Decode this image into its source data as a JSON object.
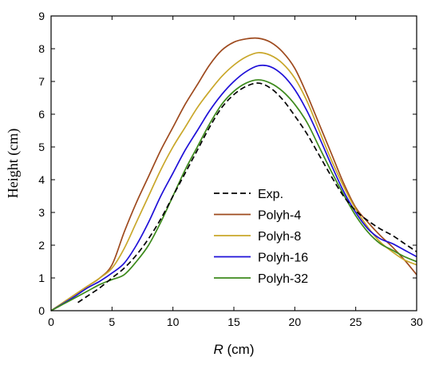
{
  "chart_data": {
    "type": "line",
    "xlabel_italic": "R",
    "xlabel_unit": " (cm)",
    "ylabel": "Height (cm)",
    "xlim": [
      0,
      30
    ],
    "ylim": [
      0,
      9
    ],
    "xticks": [
      0,
      5,
      10,
      15,
      20,
      25,
      30
    ],
    "yticks": [
      0,
      1,
      2,
      3,
      4,
      5,
      6,
      7,
      8,
      9
    ],
    "grid": false,
    "legend_position": "center-right",
    "series": [
      {
        "name": "Exp.",
        "color": "#000000",
        "dash": "dashed",
        "x": [
          2.2,
          3,
          4,
          5,
          6,
          7,
          8,
          9,
          10,
          11,
          12,
          13,
          14,
          15,
          16,
          17,
          18,
          19,
          20,
          21,
          22,
          23,
          24,
          25,
          26,
          27,
          28,
          29,
          30
        ],
        "y": [
          0.25,
          0.45,
          0.7,
          1.0,
          1.3,
          1.7,
          2.2,
          2.8,
          3.5,
          4.2,
          4.9,
          5.6,
          6.2,
          6.6,
          6.85,
          6.95,
          6.8,
          6.45,
          5.95,
          5.4,
          4.75,
          4.1,
          3.5,
          3.05,
          2.75,
          2.5,
          2.3,
          2.05,
          1.8
        ]
      },
      {
        "name": "Polyh-4",
        "color": "#9e4a1e",
        "dash": "solid",
        "x": [
          0,
          1,
          2,
          3,
          4,
          5,
          6,
          7,
          8,
          9,
          10,
          11,
          12,
          13,
          14,
          15,
          16,
          17,
          18,
          19,
          20,
          21,
          22,
          23,
          24,
          25,
          26,
          27,
          28,
          29,
          30
        ],
        "y": [
          0,
          0.25,
          0.5,
          0.75,
          1.0,
          1.4,
          2.4,
          3.3,
          4.1,
          4.9,
          5.6,
          6.3,
          6.9,
          7.5,
          7.95,
          8.2,
          8.3,
          8.32,
          8.2,
          7.9,
          7.4,
          6.6,
          5.7,
          4.8,
          3.9,
          3.15,
          2.7,
          2.3,
          1.95,
          1.55,
          1.1
        ]
      },
      {
        "name": "Polyh-8",
        "color": "#c9a72a",
        "dash": "solid",
        "x": [
          0,
          1,
          2,
          3,
          4,
          5,
          6,
          7,
          8,
          9,
          10,
          11,
          12,
          13,
          14,
          15,
          16,
          17,
          18,
          19,
          20,
          21,
          22,
          23,
          24,
          25,
          26,
          27,
          28,
          29,
          30
        ],
        "y": [
          0,
          0.25,
          0.5,
          0.75,
          1.0,
          1.3,
          1.9,
          2.7,
          3.5,
          4.3,
          5.0,
          5.6,
          6.2,
          6.7,
          7.15,
          7.5,
          7.75,
          7.88,
          7.8,
          7.55,
          7.1,
          6.4,
          5.5,
          4.6,
          3.8,
          3.1,
          2.55,
          2.1,
          1.8,
          1.55,
          1.4
        ]
      },
      {
        "name": "Polyh-16",
        "color": "#1f10d8",
        "dash": "solid",
        "x": [
          0,
          1,
          2,
          3,
          4,
          5,
          6,
          7,
          8,
          9,
          10,
          11,
          12,
          13,
          14,
          15,
          16,
          17,
          18,
          19,
          20,
          21,
          22,
          23,
          24,
          25,
          26,
          27,
          28,
          29,
          30
        ],
        "y": [
          0,
          0.22,
          0.45,
          0.7,
          0.9,
          1.15,
          1.45,
          2.0,
          2.7,
          3.5,
          4.2,
          4.9,
          5.5,
          6.1,
          6.6,
          7.0,
          7.3,
          7.48,
          7.45,
          7.2,
          6.75,
          6.1,
          5.3,
          4.45,
          3.65,
          3.0,
          2.5,
          2.2,
          2.05,
          1.85,
          1.65
        ]
      },
      {
        "name": "Polyh-32",
        "color": "#3d8a1c",
        "dash": "solid",
        "x": [
          0,
          1,
          2,
          3,
          4,
          5,
          6,
          7,
          8,
          9,
          10,
          11,
          12,
          13,
          14,
          15,
          16,
          17,
          18,
          19,
          20,
          21,
          22,
          23,
          24,
          25,
          26,
          27,
          28,
          29,
          30
        ],
        "y": [
          0,
          0.2,
          0.4,
          0.6,
          0.8,
          0.95,
          1.1,
          1.5,
          2.0,
          2.7,
          3.5,
          4.3,
          5.0,
          5.7,
          6.3,
          6.7,
          6.95,
          7.05,
          6.95,
          6.7,
          6.3,
          5.75,
          5.0,
          4.25,
          3.55,
          2.9,
          2.4,
          2.05,
          1.85,
          1.65,
          1.5
        ]
      }
    ]
  }
}
